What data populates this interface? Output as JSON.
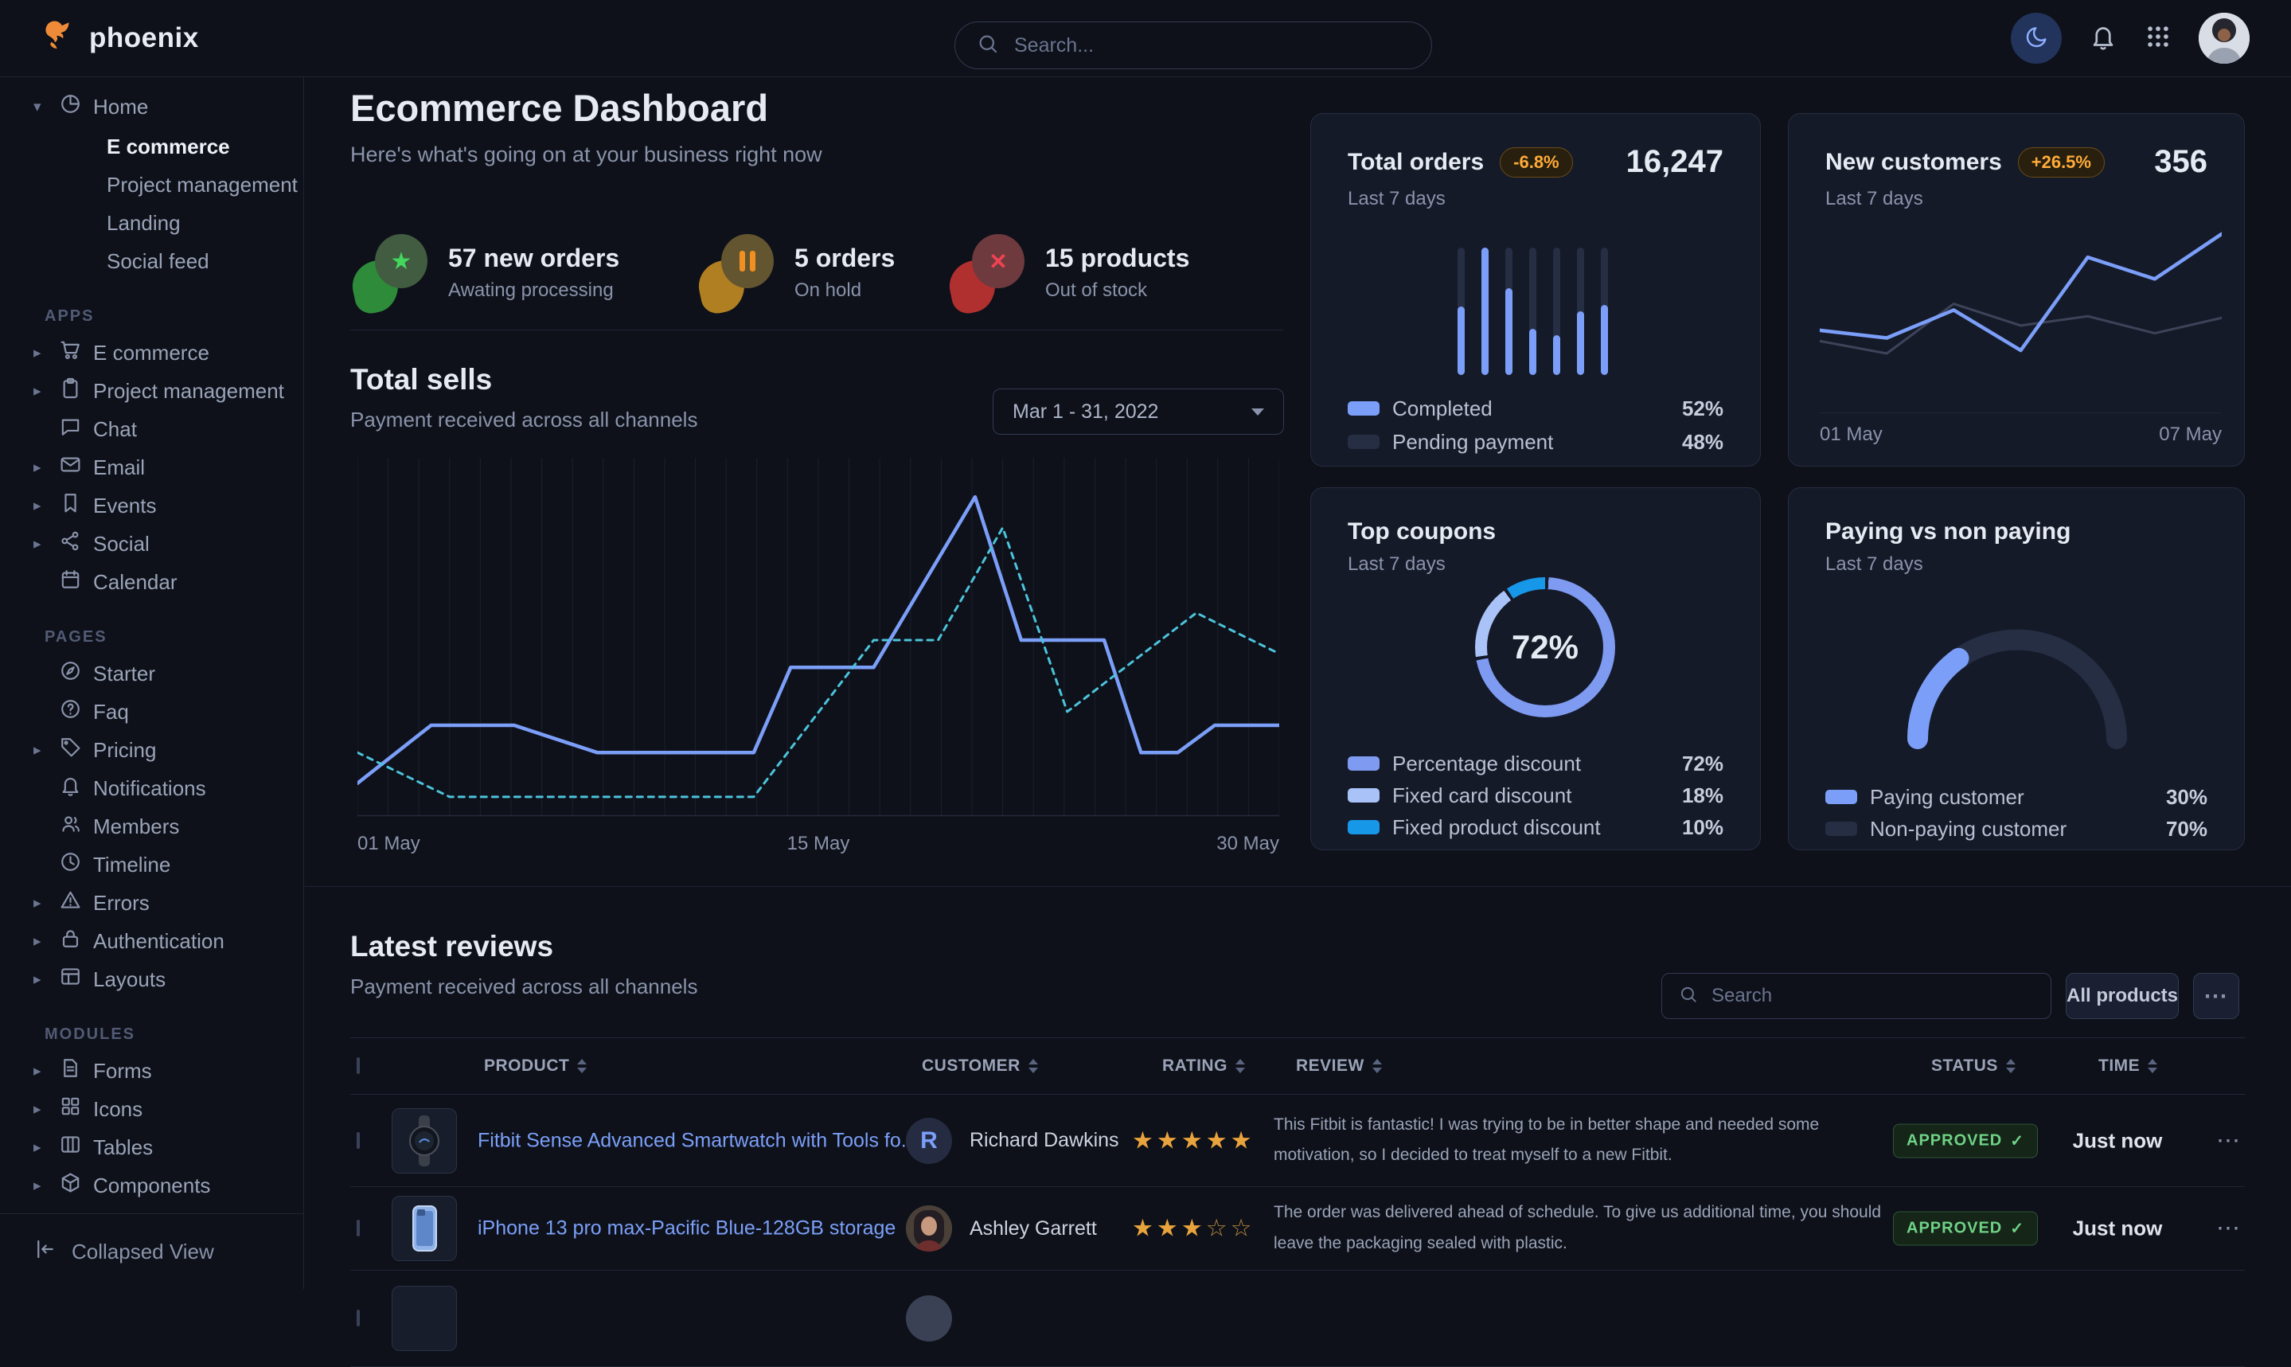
{
  "theme": {
    "background": "#0e1119",
    "card": "#151a29",
    "border": "#262d40",
    "accent": "#7b9ff9",
    "dashed_line": "#4cc3dc",
    "muted_bar": "#262e44",
    "warning_badge_text": "#ffac38",
    "success_badge_text": "#6fd287",
    "star": "#e8a33d"
  },
  "navbar": {
    "brand": "phoenix",
    "search_placeholder": "Search..."
  },
  "sidebar": {
    "sections": [
      {
        "label": "",
        "items": [
          {
            "label": "Home",
            "icon": "pie-chart",
            "caret": "down",
            "children": [
              {
                "label": "E commerce",
                "active": true
              },
              {
                "label": "Project management",
                "active": false
              },
              {
                "label": "Landing",
                "active": false
              },
              {
                "label": "Social feed",
                "active": false
              }
            ]
          }
        ]
      },
      {
        "label": "APPS",
        "items": [
          {
            "label": "E commerce",
            "icon": "cart",
            "caret": "right"
          },
          {
            "label": "Project management",
            "icon": "clipboard",
            "caret": "right"
          },
          {
            "label": "Chat",
            "icon": "chat",
            "caret": ""
          },
          {
            "label": "Email",
            "icon": "mail",
            "caret": "right"
          },
          {
            "label": "Events",
            "icon": "bookmark",
            "caret": "right"
          },
          {
            "label": "Social",
            "icon": "share",
            "caret": "right"
          },
          {
            "label": "Calendar",
            "icon": "calendar",
            "caret": ""
          }
        ]
      },
      {
        "label": "PAGES",
        "items": [
          {
            "label": "Starter",
            "icon": "compass",
            "caret": ""
          },
          {
            "label": "Faq",
            "icon": "question",
            "caret": ""
          },
          {
            "label": "Pricing",
            "icon": "tag",
            "caret": "right"
          },
          {
            "label": "Notifications",
            "icon": "bell",
            "caret": ""
          },
          {
            "label": "Members",
            "icon": "users",
            "caret": ""
          },
          {
            "label": "Timeline",
            "icon": "clock",
            "caret": ""
          },
          {
            "label": "Errors",
            "icon": "warning",
            "caret": "right"
          },
          {
            "label": "Authentication",
            "icon": "lock",
            "caret": "right"
          },
          {
            "label": "Layouts",
            "icon": "layout",
            "caret": "right"
          }
        ]
      },
      {
        "label": "MODULES",
        "items": [
          {
            "label": "Forms",
            "icon": "file",
            "caret": "right"
          },
          {
            "label": "Icons",
            "icon": "grid4",
            "caret": "right"
          },
          {
            "label": "Tables",
            "icon": "table",
            "caret": "right"
          },
          {
            "label": "Components",
            "icon": "box",
            "caret": "right"
          }
        ]
      }
    ],
    "footer_label": "Collapsed View"
  },
  "header": {
    "title": "Ecommerce Dashboard",
    "subtitle": "Here's what's going on at your business right now"
  },
  "stats": [
    {
      "value": "57 new orders",
      "caption": "Awating processing",
      "icon": "star",
      "back": "#2e8b3a",
      "front": "#415c40",
      "glyph_color": "#44d75e"
    },
    {
      "value": "5 orders",
      "caption": "On hold",
      "icon": "pause",
      "back": "#b07f22",
      "front": "#63552f",
      "glyph_color": "#f09022"
    },
    {
      "value": "15 products",
      "caption": "Out of stock",
      "icon": "x",
      "back": "#b03030",
      "front": "#6e3a3e",
      "glyph_color": "#ef4352"
    }
  ],
  "total_sells": {
    "title": "Total sells",
    "subtitle": "Payment received across all channels",
    "date_range": "Mar 1 - 31, 2022",
    "chart_data": {
      "type": "line",
      "x_labels": [
        "01 May",
        "15 May",
        "30 May"
      ],
      "ylim": [
        0,
        100
      ],
      "grid": "vertical",
      "series": [
        {
          "name": "sells",
          "style": "solid",
          "color": "#7b9ff9",
          "points": [
            [
              0,
              8
            ],
            [
              0.08,
              25
            ],
            [
              0.17,
              25
            ],
            [
              0.26,
              17
            ],
            [
              0.43,
              17
            ],
            [
              0.47,
              42
            ],
            [
              0.56,
              42
            ],
            [
              0.67,
              92
            ],
            [
              0.72,
              50
            ],
            [
              0.81,
              50
            ],
            [
              0.85,
              17
            ],
            [
              0.89,
              17
            ],
            [
              0.93,
              25
            ],
            [
              1,
              25
            ]
          ]
        },
        {
          "name": "comparison",
          "style": "dashed",
          "color": "#4cc3dc",
          "points": [
            [
              0,
              17
            ],
            [
              0.1,
              4
            ],
            [
              0.43,
              4
            ],
            [
              0.56,
              50
            ],
            [
              0.63,
              50
            ],
            [
              0.7,
              83
            ],
            [
              0.77,
              29
            ],
            [
              0.91,
              58
            ],
            [
              1,
              46
            ]
          ]
        }
      ]
    }
  },
  "cards": {
    "total_orders": {
      "title": "Total orders",
      "badge": "-6.8%",
      "period": "Last 7 days",
      "value": "16,247",
      "chart_data": {
        "type": "bar",
        "values": [
          54,
          100,
          68,
          36,
          31,
          50,
          55
        ],
        "ylim": [
          0,
          100
        ],
        "bar_color": "#7b9ff9",
        "track_color": "#262e44"
      },
      "legend": [
        {
          "label": "Completed",
          "value": "52%",
          "color": "#7b9ff9"
        },
        {
          "label": "Pending payment",
          "value": "48%",
          "color": "#262e44"
        }
      ]
    },
    "new_customers": {
      "title": "New customers",
      "badge": "+26.5%",
      "period": "Last 7 days",
      "value": "356",
      "chart_data": {
        "type": "line",
        "x_labels": [
          "01 May",
          "07 May"
        ],
        "ylim": [
          0,
          100
        ],
        "series": [
          {
            "name": "current",
            "color": "#7b9ff9",
            "values": [
              35,
              30,
              48,
              22,
              82,
              68,
              97
            ]
          },
          {
            "name": "previous",
            "color": "#3d4459",
            "values": [
              28,
              20,
              52,
              38,
              44,
              33,
              43
            ]
          }
        ]
      }
    },
    "top_coupons": {
      "title": "Top coupons",
      "period": "Last 7 days",
      "center_label": "72%",
      "chart_data": {
        "type": "donut",
        "segments": [
          {
            "label": "Percentage discount",
            "value": 72,
            "color": "#7e9bf1"
          },
          {
            "label": "Fixed card discount",
            "value": 18,
            "color": "#a9c3f8"
          },
          {
            "label": "Fixed product discount",
            "value": 10,
            "color": "#1797e8"
          }
        ]
      },
      "legend": [
        {
          "label": "Percentage discount",
          "value": "72%",
          "color": "#7e9bf1"
        },
        {
          "label": "Fixed card discount",
          "value": "18%",
          "color": "#a9c3f8"
        },
        {
          "label": "Fixed product discount",
          "value": "10%",
          "color": "#1797e8"
        }
      ]
    },
    "paying": {
      "title": "Paying vs non paying",
      "period": "Last 7 days",
      "chart_data": {
        "type": "gauge",
        "segments": [
          {
            "label": "Paying customer",
            "value": 30,
            "color": "#7b9ff9"
          },
          {
            "label": "Non-paying customer",
            "value": 70,
            "color": "#262e44"
          }
        ]
      },
      "legend": [
        {
          "label": "Paying customer",
          "value": "30%",
          "color": "#7b9ff9"
        },
        {
          "label": "Non-paying customer",
          "value": "70%",
          "color": "#262e44"
        }
      ]
    }
  },
  "reviews": {
    "title": "Latest reviews",
    "subtitle": "Payment received across all channels",
    "search_placeholder": "Search",
    "all_products_label": "All products",
    "columns": [
      "PRODUCT",
      "CUSTOMER",
      "RATING",
      "REVIEW",
      "STATUS",
      "TIME"
    ],
    "rows": [
      {
        "partial": false,
        "thumb": "watch",
        "product": "Fitbit Sense Advanced Smartwatch with Tools fo...",
        "customer": {
          "type": "initial",
          "initial": "R",
          "name": "Richard Dawkins"
        },
        "rating": 5,
        "rating_max": 5,
        "review": "This Fitbit is fantastic! I was trying to be in better shape and needed some motivation, so I decided to treat myself to a new Fitbit.",
        "status": "APPROVED",
        "time": "Just now"
      },
      {
        "partial": false,
        "thumb": "phone",
        "product": "iPhone 13 pro max-Pacific Blue-128GB storage",
        "customer": {
          "type": "photo",
          "initial": "",
          "name": "Ashley Garrett"
        },
        "rating": 3,
        "rating_max": 5,
        "review": "The order was delivered ahead of schedule. To give us additional time, you should leave the packaging sealed with plastic.",
        "status": "APPROVED",
        "time": "Just now"
      },
      {
        "partial": true,
        "thumb": "empty",
        "product": "",
        "customer": {
          "type": "photo",
          "initial": "",
          "name": ""
        },
        "rating": 0,
        "rating_max": 5,
        "review": "",
        "status": "",
        "time": ""
      }
    ]
  }
}
